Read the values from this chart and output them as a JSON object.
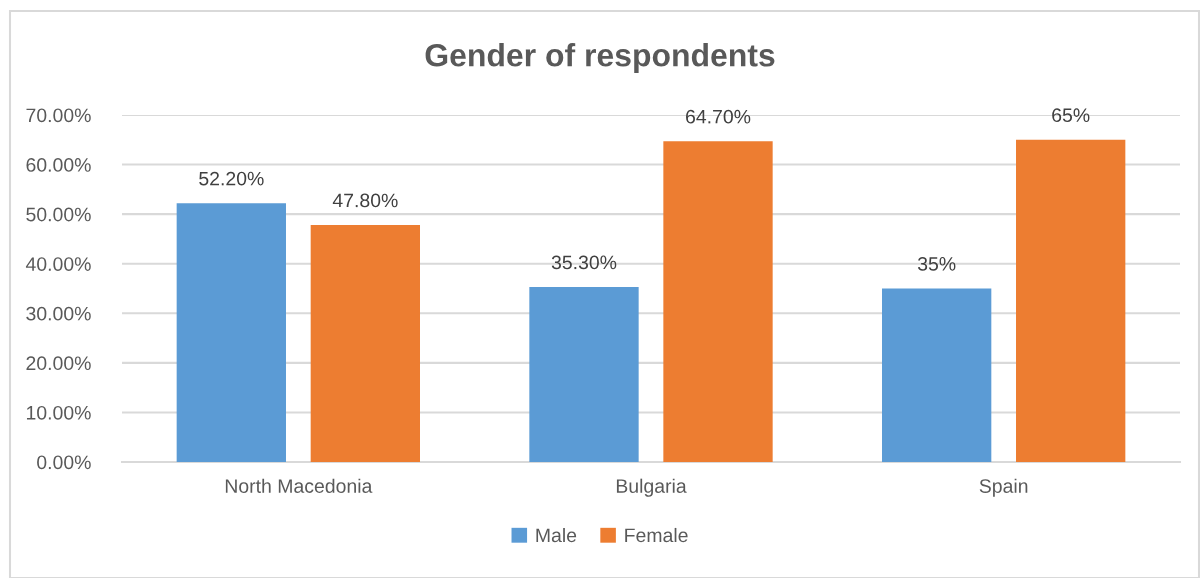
{
  "chart_data": {
    "type": "bar",
    "title": "Gender of respondents",
    "categories": [
      "North Macedonia",
      "Bulgaria",
      "Spain"
    ],
    "series": [
      {
        "name": "Male",
        "color": "#5b9bd5",
        "values": [
          52.2,
          35.3,
          35
        ],
        "value_labels": [
          "52.20%",
          "35.30%",
          "35%"
        ]
      },
      {
        "name": "Female",
        "color": "#ed7d31",
        "values": [
          47.8,
          64.7,
          65
        ],
        "value_labels": [
          "47.80%",
          "64.70%",
          "65%"
        ]
      }
    ],
    "ylim": [
      0,
      70
    ],
    "yticks": [
      {
        "value": 0,
        "label": "0.00%"
      },
      {
        "value": 10,
        "label": "10.00%"
      },
      {
        "value": 20,
        "label": "20.00%"
      },
      {
        "value": 30,
        "label": "30.00%"
      },
      {
        "value": 40,
        "label": "40.00%"
      },
      {
        "value": 50,
        "label": "50.00%"
      },
      {
        "value": 60,
        "label": "60.00%"
      },
      {
        "value": 70,
        "label": "70.00%"
      }
    ],
    "grid": "y",
    "legend": "bottom"
  }
}
